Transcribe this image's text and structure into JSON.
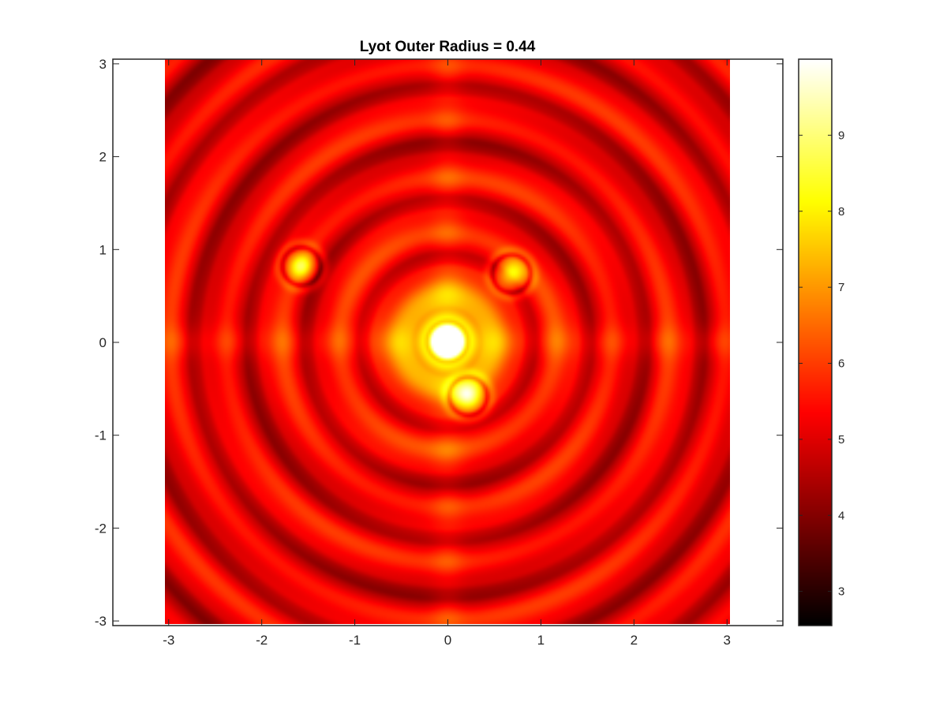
{
  "chart_data": {
    "type": "heatmap",
    "title": "Lyot Outer Radius = 0.44",
    "xlabel": "",
    "ylabel": "",
    "xlim": [
      -3.6,
      3.6
    ],
    "ylim": [
      -3.05,
      3.05
    ],
    "image_extent": {
      "x": [
        -3,
        3
      ],
      "y": [
        -3,
        3
      ]
    },
    "x_ticks": [
      -3,
      -2,
      -1,
      0,
      1,
      2,
      3
    ],
    "y_ticks": [
      -3,
      -2,
      -1,
      0,
      1,
      2,
      3
    ],
    "x_tick_labels": [
      "-3",
      "-2",
      "-1",
      "0",
      "1",
      "2",
      "3"
    ],
    "y_tick_labels": [
      "-3",
      "-2",
      "-1",
      "0",
      "1",
      "2",
      "3"
    ],
    "colormap": "hot",
    "colorbar": {
      "range": [
        2.55,
        10
      ],
      "ticks": [
        3,
        4,
        5,
        6,
        7,
        8,
        9
      ],
      "tick_labels": [
        "3",
        "4",
        "5",
        "6",
        "7",
        "8",
        "9"
      ]
    },
    "sources": [
      {
        "x": 0.0,
        "y": 0.0,
        "peak": 10.0
      },
      {
        "x": -1.55,
        "y": 0.8,
        "peak": 8.3
      },
      {
        "x": 0.68,
        "y": 0.72,
        "peak": 8.1
      },
      {
        "x": 0.22,
        "y": -0.58,
        "peak": 8.4
      }
    ],
    "background_level": 5.2,
    "grid": false
  }
}
